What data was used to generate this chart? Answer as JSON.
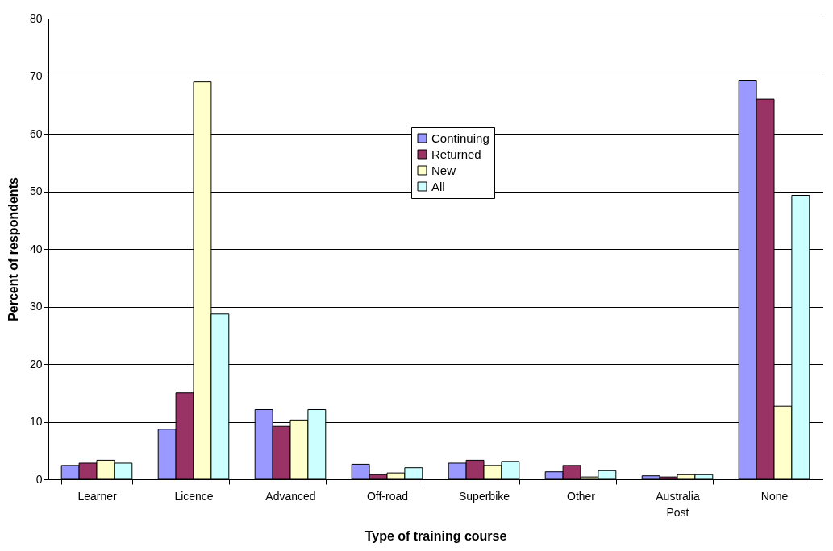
{
  "chart_data": {
    "type": "bar",
    "xlabel": "Type of training course",
    "ylabel": "Percent of respondents",
    "categories": [
      "Learner",
      "Licence",
      "Advanced",
      "Off-road",
      "Superbike",
      "Other",
      "Australia Post",
      "None"
    ],
    "series": [
      {
        "name": "Continuing",
        "color": "#9999ff",
        "values": [
          2.4,
          8.7,
          12.1,
          2.6,
          2.8,
          1.3,
          0.6,
          69.3
        ]
      },
      {
        "name": "Returned",
        "color": "#993366",
        "values": [
          2.8,
          15.0,
          9.2,
          0.8,
          3.3,
          2.4,
          0.4,
          66.0
        ]
      },
      {
        "name": "New",
        "color": "#ffffcc",
        "values": [
          3.3,
          69.0,
          10.3,
          1.1,
          2.4,
          0.4,
          0.8,
          12.7
        ]
      },
      {
        "name": "All",
        "color": "#ccffff",
        "values": [
          2.8,
          28.7,
          12.1,
          2.0,
          3.1,
          1.5,
          0.8,
          49.3
        ]
      }
    ],
    "ylim": [
      0,
      80
    ],
    "yticks": [
      0,
      10,
      20,
      30,
      40,
      50,
      60,
      70,
      80
    ],
    "grid": "y",
    "legend": "top"
  }
}
